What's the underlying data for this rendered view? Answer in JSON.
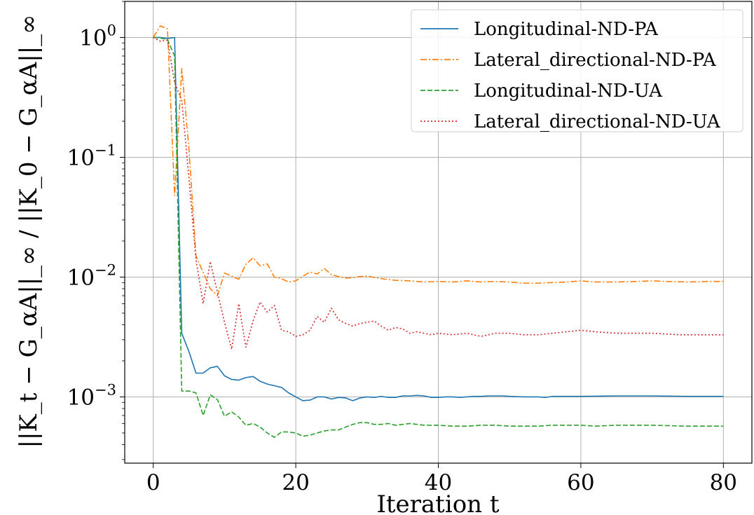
{
  "chart_data": {
    "type": "line",
    "title": "",
    "xlabel": "Iteration t",
    "ylabel": "||K_t − G_αA||_∞ / ||K_0 − G_αA||_∞",
    "yscale": "log",
    "xlim": [
      -4,
      84
    ],
    "ylim": [
      0.00028,
      2.0
    ],
    "grid": true,
    "legend_position": "top-right",
    "xticks": [
      0,
      20,
      40,
      60,
      80
    ],
    "yticks": [
      {
        "value": 1,
        "exponent": "0"
      },
      {
        "value": 0.1,
        "exponent": "−1"
      },
      {
        "value": 0.01,
        "exponent": "−2"
      },
      {
        "value": 0.001,
        "exponent": "−3"
      }
    ],
    "series": [
      {
        "name": "Longitudinal-ND-PA",
        "color": "#1f77b4",
        "style": "solid",
        "points": [
          [
            0,
            1.0
          ],
          [
            1,
            1.0
          ],
          [
            2,
            0.98
          ],
          [
            3,
            1.0
          ],
          [
            4,
            0.0034
          ],
          [
            5,
            0.0024
          ],
          [
            6,
            0.00158
          ],
          [
            7,
            0.00158
          ],
          [
            8,
            0.00175
          ],
          [
            9,
            0.0018
          ],
          [
            10,
            0.0015
          ],
          [
            11,
            0.0014
          ],
          [
            12,
            0.00138
          ],
          [
            13,
            0.00145
          ],
          [
            14,
            0.00148
          ],
          [
            15,
            0.00135
          ],
          [
            16,
            0.00128
          ],
          [
            17,
            0.00124
          ],
          [
            18,
            0.0012
          ],
          [
            19,
            0.00108
          ],
          [
            20,
            0.001
          ],
          [
            21,
            0.00093
          ],
          [
            22,
            0.00094
          ],
          [
            23,
            0.001
          ],
          [
            24,
            0.001
          ],
          [
            25,
            0.00096
          ],
          [
            26,
            0.00099
          ],
          [
            27,
            0.00098
          ],
          [
            28,
            0.00093
          ],
          [
            29,
            0.00098
          ],
          [
            30,
            0.001
          ],
          [
            31,
            0.00099
          ],
          [
            32,
            0.00101
          ],
          [
            33,
            0.00099
          ],
          [
            34,
            0.00099
          ],
          [
            35,
            0.00102
          ],
          [
            36,
            0.00102
          ],
          [
            37,
            0.00103
          ],
          [
            38,
            0.00102
          ],
          [
            39,
            0.00099
          ],
          [
            40,
            0.00099
          ],
          [
            41,
            0.001
          ],
          [
            42,
            0.001
          ],
          [
            43,
            0.00099
          ],
          [
            44,
            0.001
          ],
          [
            45,
            0.00101
          ],
          [
            46,
            0.00101
          ],
          [
            47,
            0.00102
          ],
          [
            48,
            0.00102
          ],
          [
            49,
            0.00102
          ],
          [
            50,
            0.00101
          ],
          [
            52,
            0.001
          ],
          [
            54,
            0.001
          ],
          [
            55,
            0.00099
          ],
          [
            56,
            0.00101
          ],
          [
            60,
            0.00101
          ],
          [
            65,
            0.00102
          ],
          [
            70,
            0.00102
          ],
          [
            75,
            0.00101
          ],
          [
            80,
            0.00101
          ]
        ]
      },
      {
        "name": "Lateral_directional-ND-PA",
        "color": "#ff7f0e",
        "style": "dashdot",
        "points": [
          [
            0,
            1.0
          ],
          [
            1,
            1.25
          ],
          [
            2,
            1.18
          ],
          [
            3,
            0.048
          ],
          [
            4,
            0.55
          ],
          [
            5,
            0.12
          ],
          [
            6,
            0.015
          ],
          [
            7,
            0.011
          ],
          [
            8,
            0.008
          ],
          [
            9,
            0.007
          ],
          [
            10,
            0.0108
          ],
          [
            11,
            0.0102
          ],
          [
            12,
            0.0096
          ],
          [
            13,
            0.0128
          ],
          [
            14,
            0.0145
          ],
          [
            15,
            0.0124
          ],
          [
            16,
            0.0129
          ],
          [
            17,
            0.01
          ],
          [
            18,
            0.0097
          ],
          [
            19,
            0.0091
          ],
          [
            20,
            0.0093
          ],
          [
            21,
            0.0102
          ],
          [
            22,
            0.011
          ],
          [
            23,
            0.0106
          ],
          [
            24,
            0.0118
          ],
          [
            25,
            0.0105
          ],
          [
            26,
            0.0101
          ],
          [
            27,
            0.0098
          ],
          [
            28,
            0.0099
          ],
          [
            29,
            0.0101
          ],
          [
            30,
            0.0102
          ],
          [
            32,
            0.0097
          ],
          [
            34,
            0.0094
          ],
          [
            36,
            0.0093
          ],
          [
            38,
            0.0091
          ],
          [
            40,
            0.0092
          ],
          [
            42,
            0.0091
          ],
          [
            44,
            0.0093
          ],
          [
            46,
            0.0091
          ],
          [
            48,
            0.0092
          ],
          [
            50,
            0.0091
          ],
          [
            52,
            0.0089
          ],
          [
            54,
            0.0089
          ],
          [
            56,
            0.009
          ],
          [
            58,
            0.0091
          ],
          [
            60,
            0.0093
          ],
          [
            62,
            0.0091
          ],
          [
            65,
            0.0091
          ],
          [
            68,
            0.0092
          ],
          [
            70,
            0.0093
          ],
          [
            72,
            0.0092
          ],
          [
            75,
            0.0091
          ],
          [
            78,
            0.0092
          ],
          [
            80,
            0.0092
          ]
        ]
      },
      {
        "name": "Longitudinal-ND-UA",
        "color": "#2ca02c",
        "style": "dashed",
        "points": [
          [
            0,
            1.0
          ],
          [
            1,
            0.99
          ],
          [
            2,
            0.96
          ],
          [
            3,
            0.7
          ],
          [
            4,
            0.00112
          ],
          [
            5,
            0.00112
          ],
          [
            6,
            0.00108
          ],
          [
            7,
            0.0007
          ],
          [
            8,
            0.00104
          ],
          [
            9,
            0.00095
          ],
          [
            10,
            0.00069
          ],
          [
            11,
            0.00075
          ],
          [
            12,
            0.00068
          ],
          [
            13,
            0.00058
          ],
          [
            14,
            0.0006
          ],
          [
            15,
            0.00056
          ],
          [
            16,
            0.0005
          ],
          [
            17,
            0.00046
          ],
          [
            18,
            0.00051
          ],
          [
            19,
            0.00051
          ],
          [
            20,
            0.0005
          ],
          [
            21,
            0.00047
          ],
          [
            22,
            0.00048
          ],
          [
            23,
            0.0005
          ],
          [
            24,
            0.00052
          ],
          [
            25,
            0.00053
          ],
          [
            26,
            0.00053
          ],
          [
            27,
            0.00056
          ],
          [
            28,
            0.00059
          ],
          [
            29,
            0.00061
          ],
          [
            30,
            0.00061
          ],
          [
            31,
            0.00059
          ],
          [
            32,
            0.00059
          ],
          [
            33,
            0.0006
          ],
          [
            34,
            0.00058
          ],
          [
            35,
            0.00059
          ],
          [
            36,
            0.0006
          ],
          [
            37,
            0.00059
          ],
          [
            38,
            0.00058
          ],
          [
            40,
            0.00058
          ],
          [
            42,
            0.00057
          ],
          [
            44,
            0.00057
          ],
          [
            46,
            0.00058
          ],
          [
            48,
            0.00058
          ],
          [
            50,
            0.00057
          ],
          [
            52,
            0.00057
          ],
          [
            54,
            0.00057
          ],
          [
            56,
            0.00058
          ],
          [
            58,
            0.00058
          ],
          [
            60,
            0.00058
          ],
          [
            62,
            0.00057
          ],
          [
            65,
            0.00058
          ],
          [
            70,
            0.00058
          ],
          [
            75,
            0.00057
          ],
          [
            80,
            0.00057
          ]
        ]
      },
      {
        "name": "Lateral_directional-ND-UA",
        "color": "#d62728",
        "style": "dotted",
        "points": [
          [
            0,
            1.0
          ],
          [
            1,
            0.93
          ],
          [
            2,
            0.95
          ],
          [
            3,
            0.42
          ],
          [
            4,
            0.3
          ],
          [
            5,
            0.068
          ],
          [
            6,
            0.014
          ],
          [
            7,
            0.006
          ],
          [
            8,
            0.0135
          ],
          [
            9,
            0.0075
          ],
          [
            10,
            0.0042
          ],
          [
            11,
            0.0025
          ],
          [
            12,
            0.006
          ],
          [
            13,
            0.0026
          ],
          [
            14,
            0.0043
          ],
          [
            15,
            0.0062
          ],
          [
            16,
            0.0051
          ],
          [
            17,
            0.0058
          ],
          [
            18,
            0.0036
          ],
          [
            19,
            0.0035
          ],
          [
            20,
            0.0032
          ],
          [
            21,
            0.0033
          ],
          [
            22,
            0.0036
          ],
          [
            23,
            0.0047
          ],
          [
            24,
            0.0042
          ],
          [
            25,
            0.0055
          ],
          [
            26,
            0.0044
          ],
          [
            27,
            0.0041
          ],
          [
            28,
            0.0039
          ],
          [
            29,
            0.0041
          ],
          [
            30,
            0.0042
          ],
          [
            31,
            0.0043
          ],
          [
            32,
            0.0039
          ],
          [
            33,
            0.0036
          ],
          [
            34,
            0.0038
          ],
          [
            35,
            0.0037
          ],
          [
            36,
            0.0034
          ],
          [
            37,
            0.0035
          ],
          [
            38,
            0.0034
          ],
          [
            39,
            0.0033
          ],
          [
            40,
            0.0034
          ],
          [
            42,
            0.0033
          ],
          [
            44,
            0.0034
          ],
          [
            46,
            0.0032
          ],
          [
            48,
            0.0034
          ],
          [
            50,
            0.0034
          ],
          [
            52,
            0.0033
          ],
          [
            54,
            0.0033
          ],
          [
            56,
            0.0034
          ],
          [
            58,
            0.0035
          ],
          [
            60,
            0.0036
          ],
          [
            62,
            0.0035
          ],
          [
            65,
            0.0034
          ],
          [
            68,
            0.0034
          ],
          [
            70,
            0.0034
          ],
          [
            74,
            0.0033
          ],
          [
            78,
            0.0033
          ],
          [
            80,
            0.0033
          ]
        ]
      }
    ]
  }
}
